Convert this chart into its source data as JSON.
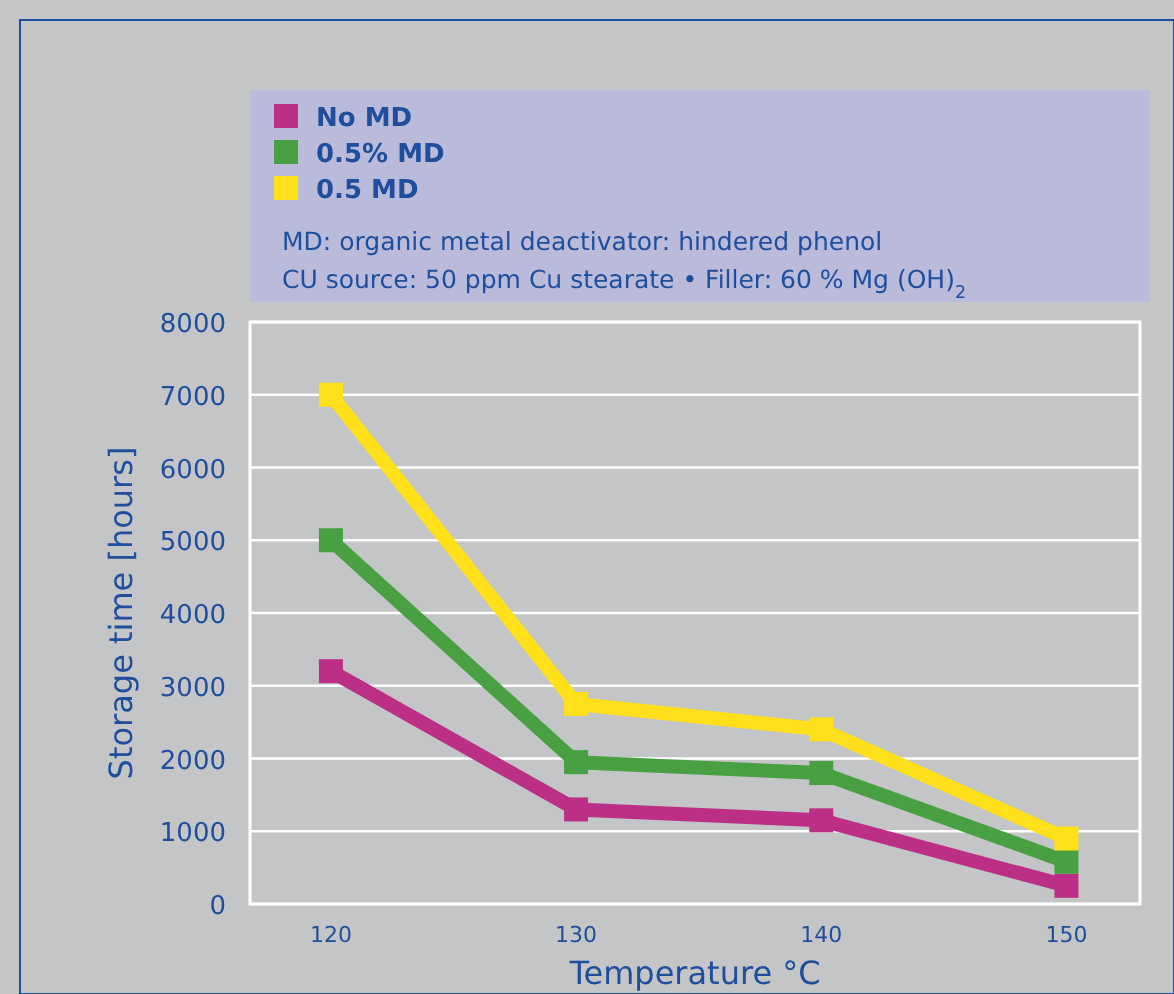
{
  "chart_data": {
    "type": "line",
    "xlabel": "Temperature °C",
    "ylabel": "Storage time [hours]",
    "x": [
      120,
      130,
      140,
      150
    ],
    "series": [
      {
        "name": "No MD",
        "color": "#bb2f86",
        "values": [
          3200,
          1300,
          1150,
          250
        ]
      },
      {
        "name": "0.5% MD",
        "color": "#48a043",
        "values": [
          5000,
          1950,
          1800,
          580
        ]
      },
      {
        "name": "0.5 MD",
        "color": "#ffe01a",
        "values": [
          7000,
          2750,
          2400,
          900
        ]
      }
    ],
    "annotations": [
      "MD: organic metal deactivator: hindered phenol",
      "CU source: 50 ppm Cu stearate • Filler: 60 % Mg (OH)$_{2}$"
    ],
    "xlim": [
      116.7,
      153
    ],
    "xticks": [
      120,
      130,
      140,
      150
    ],
    "ylim": [
      0,
      8000
    ],
    "yticks": [
      0,
      1000,
      2000,
      3000,
      4000,
      5000,
      6000,
      7000,
      8000
    ],
    "grid": "y",
    "legend": "top",
    "marker": "square",
    "line_style": "solid"
  }
}
